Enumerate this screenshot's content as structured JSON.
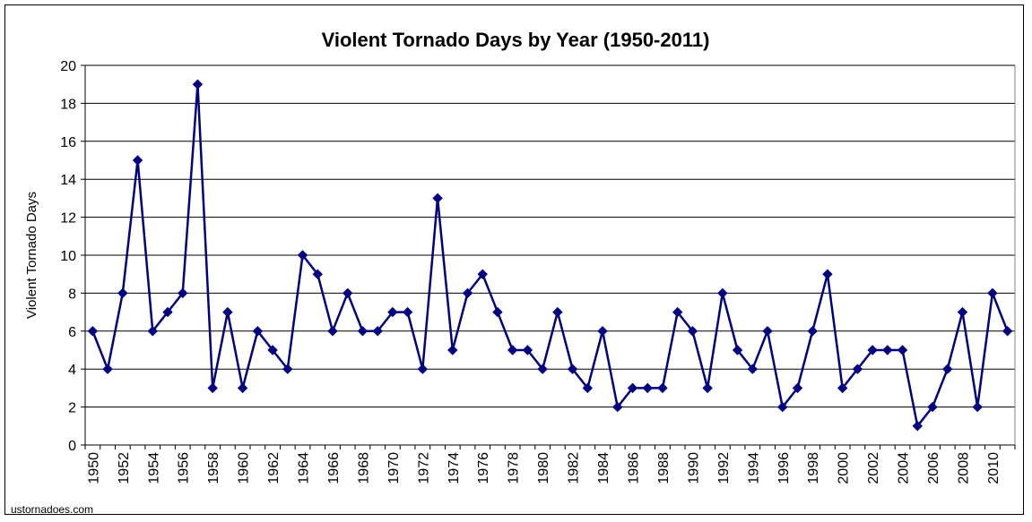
{
  "chart_data": {
    "type": "line",
    "title": "Violent Tornado Days by Year (1950-2011)",
    "xlabel": "",
    "ylabel": "Violent Tornado Days",
    "ylim": [
      0,
      20
    ],
    "y_ticks": [
      "0",
      "2",
      "4",
      "6",
      "8",
      "10",
      "12",
      "14",
      "16",
      "18",
      "20"
    ],
    "x_tick_labels": [
      "1950",
      "1952",
      "1954",
      "1956",
      "1958",
      "1960",
      "1962",
      "1964",
      "1966",
      "1968",
      "1970",
      "1972",
      "1974",
      "1976",
      "1978",
      "1980",
      "1982",
      "1984",
      "1986",
      "1988",
      "1990",
      "1992",
      "1994",
      "1996",
      "1998",
      "2000",
      "2002",
      "2004",
      "2006",
      "2008",
      "2010"
    ],
    "grid": true,
    "legend": "none",
    "line_color": "#000080",
    "marker": "diamond",
    "x": [
      1950,
      1951,
      1952,
      1953,
      1954,
      1955,
      1956,
      1957,
      1958,
      1959,
      1960,
      1961,
      1962,
      1963,
      1964,
      1965,
      1966,
      1967,
      1968,
      1969,
      1970,
      1971,
      1972,
      1973,
      1974,
      1975,
      1976,
      1977,
      1978,
      1979,
      1980,
      1981,
      1982,
      1983,
      1984,
      1985,
      1986,
      1987,
      1988,
      1989,
      1990,
      1991,
      1992,
      1993,
      1994,
      1995,
      1996,
      1997,
      1998,
      1999,
      2000,
      2001,
      2002,
      2003,
      2004,
      2005,
      2006,
      2007,
      2008,
      2009,
      2010,
      2011
    ],
    "values": [
      6,
      4,
      8,
      15,
      6,
      7,
      8,
      19,
      3,
      7,
      3,
      6,
      5,
      4,
      10,
      9,
      6,
      8,
      6,
      6,
      7,
      7,
      4,
      13,
      5,
      8,
      9,
      7,
      5,
      5,
      4,
      7,
      4,
      3,
      6,
      2,
      3,
      3,
      3,
      7,
      6,
      3,
      8,
      5,
      4,
      6,
      2,
      3,
      6,
      9,
      3,
      4,
      5,
      5,
      5,
      1,
      2,
      4,
      7,
      2,
      8,
      6
    ]
  },
  "source": "ustornadoes.com"
}
